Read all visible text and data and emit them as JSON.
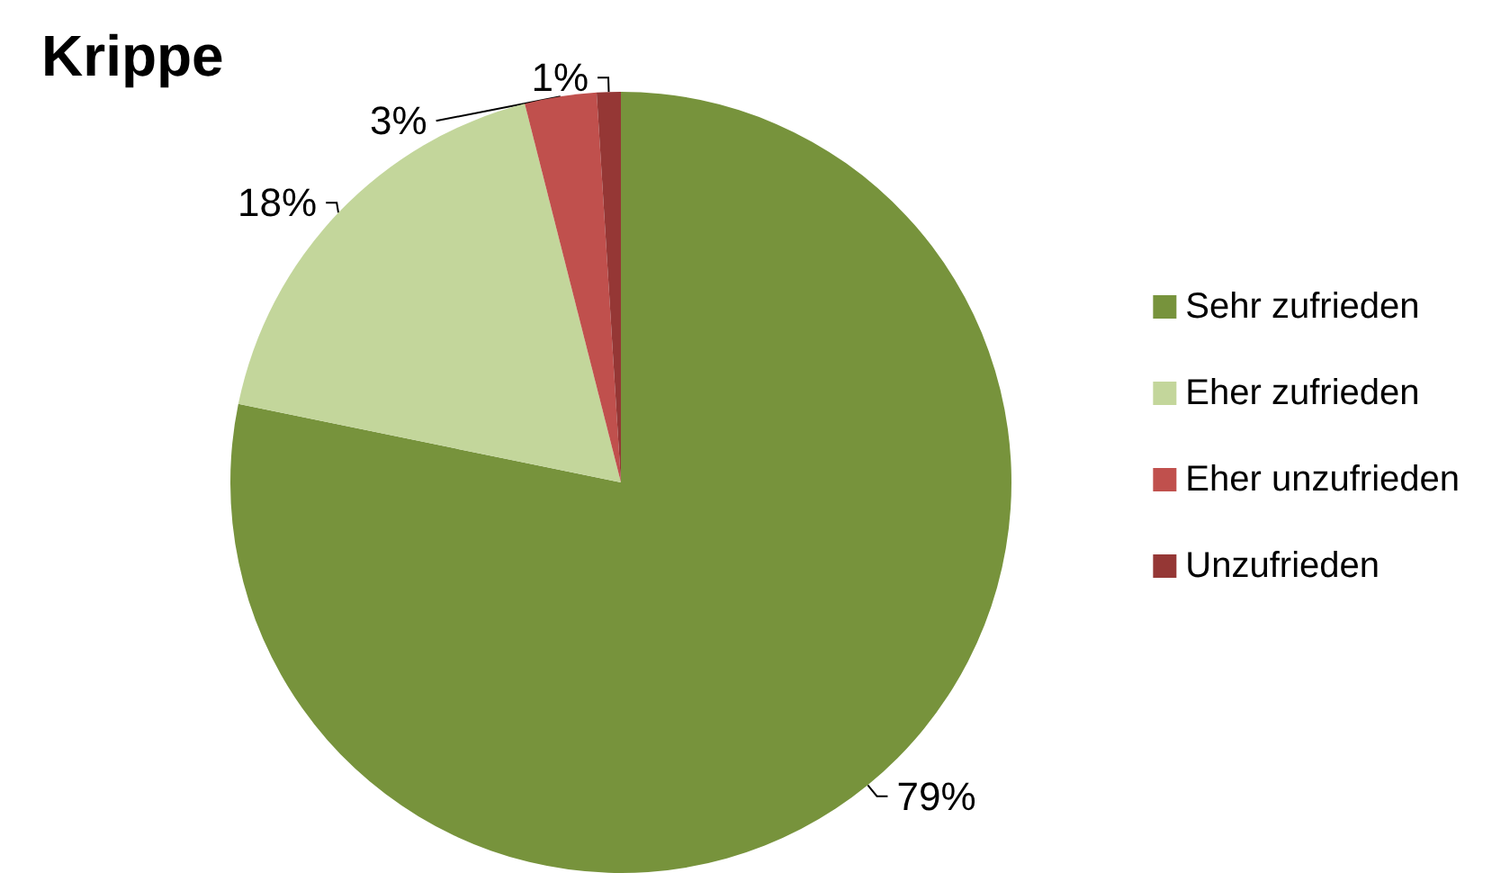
{
  "chart_data": {
    "type": "pie",
    "title": "Krippe",
    "categories": [
      "Sehr zufrieden",
      "Eher zufrieden",
      "Eher unzufrieden",
      "Unzufrieden"
    ],
    "values": [
      79,
      18,
      3,
      1
    ],
    "value_labels": [
      "79%",
      "18%",
      "3%",
      "1%"
    ],
    "colors": [
      "#77933c",
      "#c3d69b",
      "#c0504d",
      "#953735"
    ],
    "legend": "right"
  }
}
